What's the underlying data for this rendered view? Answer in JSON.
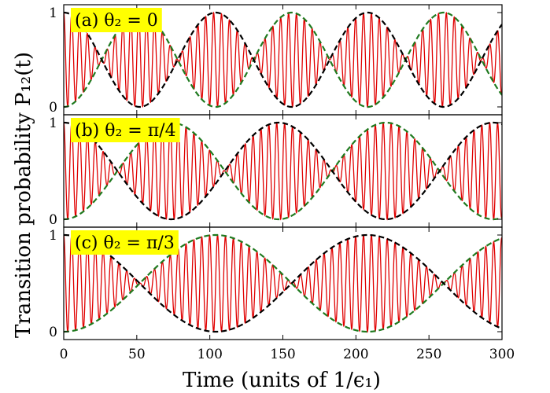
{
  "chart_data": [
    {
      "type": "line",
      "panel_label": "(a) θ₂ = 0",
      "x_range": [
        0,
        300
      ],
      "ylim": [
        0,
        1
      ],
      "yticks": [
        "0",
        "1"
      ],
      "envelope_period": 104,
      "series": [
        {
          "role": "oscillation",
          "color": "#e00000",
          "fast_period": 5.4,
          "envelope_min": 0,
          "envelope_max": 1
        },
        {
          "role": "upper-envelope",
          "style": "dashed",
          "color": "#000000",
          "function": "cos^2(pi t / period)"
        },
        {
          "role": "lower-envelope",
          "style": "dashed",
          "color": "#1f7a1f",
          "function": "sin^2(pi t / period)"
        }
      ]
    },
    {
      "type": "line",
      "panel_label": "(b) θ₂ = π/4",
      "x_range": [
        0,
        300
      ],
      "ylim": [
        0,
        1
      ],
      "yticks": [
        "0",
        "1"
      ],
      "envelope_period": 147,
      "series": [
        {
          "role": "oscillation",
          "color": "#e00000",
          "fast_period": 5.4,
          "envelope_min": 0,
          "envelope_max": 1
        },
        {
          "role": "upper-envelope",
          "style": "dashed",
          "color": "#000000",
          "function": "cos^2(pi t / period)"
        },
        {
          "role": "lower-envelope",
          "style": "dashed",
          "color": "#1f7a1f",
          "function": "sin^2(pi t / period)"
        }
      ]
    },
    {
      "type": "line",
      "panel_label": "(c) θ₂ = π/3",
      "x_range": [
        0,
        300
      ],
      "ylim": [
        0,
        1
      ],
      "yticks": [
        "0",
        "1"
      ],
      "envelope_period": 208,
      "series": [
        {
          "role": "oscillation",
          "color": "#e00000",
          "fast_period": 5.4,
          "envelope_min": 0,
          "envelope_max": 1
        },
        {
          "role": "upper-envelope",
          "style": "dashed",
          "color": "#000000",
          "function": "cos^2(pi t / period)"
        },
        {
          "role": "lower-envelope",
          "style": "dashed",
          "color": "#1f7a1f",
          "function": "sin^2(pi t / period)"
        }
      ]
    }
  ],
  "axes": {
    "xlabel": "Time (units of 1/ϵ₁)",
    "ylabel": "Transition probability P₁₂(t)",
    "xticks": [
      "0",
      "50",
      "100",
      "150",
      "200",
      "250",
      "300"
    ],
    "xtick_values": [
      0,
      50,
      100,
      150,
      200,
      250,
      300
    ]
  },
  "colors": {
    "oscillation": "#e00000",
    "upper_envelope": "#000000",
    "lower_envelope": "#1f7a1f",
    "label_background": "#ffff00"
  }
}
